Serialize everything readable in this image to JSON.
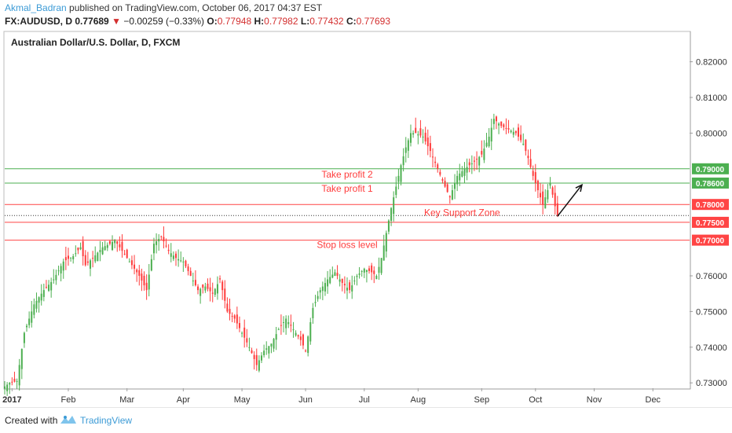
{
  "header": {
    "author": "Akmal_Badran",
    "published": " published on TradingView.com, October 06, 2017 04:37 EST",
    "symbol": "FX:AUDUSD, D",
    "last": "0.77689",
    "down_arrow": "▼",
    "change": "−0.00259 (−0.33%)",
    "o_label": "O:",
    "o_val": "0.77948",
    "h_label": "H:",
    "h_val": "0.77982",
    "l_label": "L:",
    "l_val": "0.77432",
    "c_label": "C:",
    "c_val": "0.77693"
  },
  "footer": {
    "created": "Created with",
    "brand": "TradingView"
  },
  "chart_data": {
    "type": "candlestick",
    "title": "Australian Dollar/U.S. Dollar, D, FXCM",
    "ylim": [
      0.7285,
      0.8285
    ],
    "xlim_index": [
      0,
      280
    ],
    "ylabels": [
      {
        "v": 0.82,
        "t": "0.82000"
      },
      {
        "v": 0.81,
        "t": "0.81000"
      },
      {
        "v": 0.8,
        "t": "0.80000"
      },
      {
        "v": 0.76,
        "t": "0.76000"
      },
      {
        "v": 0.75,
        "t": "0.75000"
      },
      {
        "v": 0.74,
        "t": "0.74000"
      },
      {
        "v": 0.73,
        "t": "0.73000"
      }
    ],
    "xlabels": [
      {
        "i": 3,
        "t": "2017"
      },
      {
        "i": 26,
        "t": "Feb"
      },
      {
        "i": 50,
        "t": "Mar"
      },
      {
        "i": 73,
        "t": "Apr"
      },
      {
        "i": 97,
        "t": "May"
      },
      {
        "i": 123,
        "t": "Jun"
      },
      {
        "i": 147,
        "t": "Jul"
      },
      {
        "i": 169,
        "t": "Aug"
      },
      {
        "i": 195,
        "t": "Sep"
      },
      {
        "i": 217,
        "t": "Oct"
      },
      {
        "i": 241,
        "t": "Nov"
      },
      {
        "i": 265,
        "t": "Dec"
      }
    ],
    "levels": [
      {
        "v": 0.79,
        "t": "0.79000",
        "color": "#4caf50",
        "label": "Take profit 2",
        "label_i": 140
      },
      {
        "v": 0.786,
        "t": "0.78600",
        "color": "#4caf50",
        "label": "Take profit 1",
        "label_i": 140
      },
      {
        "v": 0.78,
        "t": "0.78000",
        "color": "#ff4444",
        "label": "",
        "label_i": 0
      },
      {
        "v": 0.775,
        "t": "0.77500",
        "color": "#ff4444",
        "label": "",
        "label_i": 0
      },
      {
        "v": 0.77,
        "t": "0.77000",
        "color": "#ff4444",
        "label": "Stop loss level",
        "label_i": 140
      }
    ],
    "zone_label": {
      "t": "Key Support Zone",
      "i": 187,
      "v": 0.7777
    },
    "current_price": 0.7769,
    "arrow": {
      "from_i": 226,
      "from_v": 0.7767,
      "to_i": 236,
      "to_v": 0.7855
    },
    "up_color": "#4caf50",
    "down_color": "#ff3b3b",
    "anchors": [
      [
        0,
        0.729
      ],
      [
        2,
        0.73
      ],
      [
        5,
        0.7305
      ],
      [
        8,
        0.744
      ],
      [
        12,
        0.752
      ],
      [
        16,
        0.756
      ],
      [
        20,
        0.759
      ],
      [
        24,
        0.764
      ],
      [
        28,
        0.7655
      ],
      [
        31,
        0.768
      ],
      [
        33,
        0.763
      ],
      [
        36,
        0.765
      ],
      [
        40,
        0.768
      ],
      [
        43,
        0.769
      ],
      [
        45,
        0.77
      ],
      [
        48,
        0.767
      ],
      [
        51,
        0.764
      ],
      [
        55,
        0.76
      ],
      [
        58,
        0.756
      ],
      [
        61,
        0.769
      ],
      [
        64,
        0.771
      ],
      [
        67,
        0.767
      ],
      [
        70,
        0.765
      ],
      [
        73,
        0.764
      ],
      [
        76,
        0.76
      ],
      [
        79,
        0.756
      ],
      [
        82,
        0.757
      ],
      [
        85,
        0.755
      ],
      [
        88,
        0.759
      ],
      [
        91,
        0.75
      ],
      [
        94,
        0.748
      ],
      [
        97,
        0.744
      ],
      [
        100,
        0.74
      ],
      [
        103,
        0.735
      ],
      [
        106,
        0.739
      ],
      [
        109,
        0.741
      ],
      [
        112,
        0.745
      ],
      [
        115,
        0.748
      ],
      [
        118,
        0.745
      ],
      [
        121,
        0.742
      ],
      [
        123,
        0.739
      ],
      [
        126,
        0.751
      ],
      [
        129,
        0.756
      ],
      [
        132,
        0.759
      ],
      [
        135,
        0.761
      ],
      [
        138,
        0.758
      ],
      [
        141,
        0.756
      ],
      [
        144,
        0.76
      ],
      [
        147,
        0.762
      ],
      [
        150,
        0.761
      ],
      [
        152,
        0.76
      ],
      [
        154,
        0.765
      ],
      [
        156,
        0.772
      ],
      [
        158,
        0.779
      ],
      [
        160,
        0.785
      ],
      [
        162,
        0.791
      ],
      [
        164,
        0.796
      ],
      [
        166,
        0.8
      ],
      [
        168,
        0.8
      ],
      [
        171,
        0.799
      ],
      [
        174,
        0.795
      ],
      [
        177,
        0.79
      ],
      [
        180,
        0.785
      ],
      [
        182,
        0.782
      ],
      [
        185,
        0.788
      ],
      [
        188,
        0.79
      ],
      [
        192,
        0.792
      ],
      [
        195,
        0.794
      ],
      [
        198,
        0.799
      ],
      [
        200,
        0.804
      ],
      [
        203,
        0.802
      ],
      [
        206,
        0.801
      ],
      [
        209,
        0.8
      ],
      [
        212,
        0.797
      ],
      [
        214,
        0.793
      ],
      [
        216,
        0.788
      ],
      [
        218,
        0.784
      ],
      [
        220,
        0.78
      ],
      [
        223,
        0.786
      ],
      [
        225,
        0.7795
      ],
      [
        226,
        0.7769
      ]
    ]
  }
}
